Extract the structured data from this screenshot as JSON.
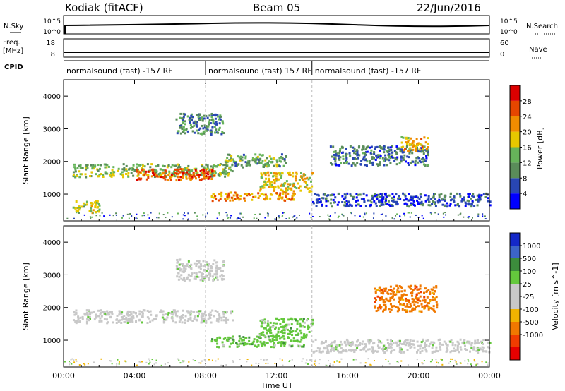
{
  "header": {
    "site": "Kodiak (fitACF)",
    "beam": "Beam 05",
    "date": "22/Jun/2016"
  },
  "top_panel": {
    "left_label": "N.Sky",
    "left_ticks": [
      "10^5",
      "10^0"
    ],
    "right_ticks": [
      "10^5",
      "10^0"
    ],
    "right_label": "N.Search"
  },
  "freq_panel": {
    "left_label_line1": "Freq.",
    "left_label_line2": "[MHz]",
    "left_ticks": [
      "18",
      "8"
    ],
    "right_ticks": [
      "60",
      "0"
    ],
    "right_label": "Nave"
  },
  "cpid": {
    "label": "CPID",
    "segments": [
      {
        "start": 0.0,
        "text": "normalsound (fast) -157 RF"
      },
      {
        "start": 8.0,
        "text": "normalsound (fast) 157 RF"
      },
      {
        "start": 14.0,
        "text": "normalsound (fast) -157 RF"
      }
    ]
  },
  "colors": {
    "power_scale": [
      "#0000ff",
      "#2846b4",
      "#5a8c5a",
      "#66b45a",
      "#e6c800",
      "#f08c00",
      "#e64600",
      "#dc0000"
    ],
    "velocity_scale": [
      "#1428c8",
      "#3c64c8",
      "#3c8c3c",
      "#64c83c",
      "#c8c8c8",
      "#c8c8c8",
      "#f0b400",
      "#f07800",
      "#f03c00",
      "#e60000"
    ]
  },
  "chart_data": [
    {
      "type": "heatmap",
      "title": "",
      "xlabel": "",
      "ylabel": "Slant Range [km]",
      "xlim": [
        0,
        24
      ],
      "ylim": [
        180,
        4500
      ],
      "yticks": [
        1000,
        2000,
        3000,
        4000
      ],
      "colorbar": {
        "label": "Power [dB]",
        "range": [
          0,
          32
        ],
        "ticks": [
          4,
          8,
          12,
          16,
          20,
          24,
          28
        ]
      },
      "features": [
        {
          "t": [
            0.5,
            9.5
          ],
          "range": [
            1550,
            1950
          ],
          "level": 14,
          "desc": "main band"
        },
        {
          "t": [
            4.0,
            8.5
          ],
          "range": [
            1450,
            1800
          ],
          "level": 26
        },
        {
          "t": [
            8.3,
            13.0
          ],
          "range": [
            820,
            1080
          ],
          "level": 22
        },
        {
          "t": [
            0.5,
            2.0
          ],
          "range": [
            450,
            820
          ],
          "level": 16
        },
        {
          "t": [
            6.3,
            9.0
          ],
          "range": [
            2850,
            3500
          ],
          "level": 10
        },
        {
          "t": [
            9.0,
            12.5
          ],
          "range": [
            1850,
            2250
          ],
          "level": 12
        },
        {
          "t": [
            11.0,
            14.0
          ],
          "range": [
            1100,
            1700
          ],
          "level": 18
        },
        {
          "t": [
            14.0,
            24.0
          ],
          "range": [
            650,
            1050
          ],
          "level": 6
        },
        {
          "t": [
            15.0,
            20.5
          ],
          "range": [
            1900,
            2500
          ],
          "level": 8
        },
        {
          "t": [
            19.0,
            20.5
          ],
          "range": [
            2350,
            2800
          ],
          "level": 20
        }
      ],
      "x_ticklabels": [
        "00:00",
        "04:00",
        "08:00",
        "12:00",
        "16:00",
        "20:00",
        "00:00"
      ]
    },
    {
      "type": "heatmap",
      "title": "",
      "xlabel": "Time UT",
      "ylabel": "Slant Range [km]",
      "xlim": [
        0,
        24
      ],
      "ylim": [
        180,
        4500
      ],
      "yticks": [
        1000,
        2000,
        3000,
        4000
      ],
      "colorbar": {
        "label": "Velocity [m s^-1]",
        "ticks": [
          "1000",
          "500",
          "100",
          "25",
          "-25",
          "-100",
          "-500",
          "-1000"
        ]
      },
      "features": [
        {
          "t": [
            0.5,
            9.5
          ],
          "range": [
            1550,
            1950
          ],
          "velocity": 0
        },
        {
          "t": [
            8.3,
            13.5
          ],
          "range": [
            820,
            1150
          ],
          "velocity": 100
        },
        {
          "t": [
            11.0,
            14.0
          ],
          "range": [
            1100,
            1700
          ],
          "velocity": 150
        },
        {
          "t": [
            17.5,
            21.0
          ],
          "range": [
            1900,
            2700
          ],
          "velocity": -200
        },
        {
          "t": [
            14.0,
            24.0
          ],
          "range": [
            650,
            1050
          ],
          "velocity": 0
        },
        {
          "t": [
            6.3,
            9.0
          ],
          "range": [
            2850,
            3500
          ],
          "velocity": 0
        }
      ],
      "x_ticklabels": [
        "00:00",
        "04:00",
        "08:00",
        "12:00",
        "16:00",
        "20:00",
        "00:00"
      ]
    }
  ]
}
